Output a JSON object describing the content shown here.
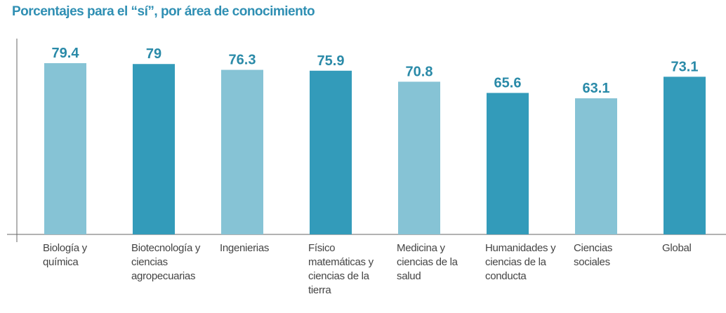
{
  "chart_data": {
    "type": "bar",
    "title": "Porcentajes para el “sí”, por área de conocimiento",
    "categories": [
      "Biología y química",
      "Biotecnología y ciencias agropecuarias",
      "Ingenierias",
      "Físico matemáticas y ciencias de la tierra",
      "Medicina y ciencias de la salud",
      "Humanidades y ciencias de la conducta",
      "Ciencias sociales",
      "Global"
    ],
    "values": [
      79.4,
      79,
      76.3,
      75.9,
      70.8,
      65.6,
      63.1,
      73.1
    ],
    "colors": [
      "#86c3d5",
      "#339bba",
      "#86c3d5",
      "#339bba",
      "#86c3d5",
      "#339bba",
      "#86c3d5",
      "#339bba"
    ],
    "ylim": [
      0,
      90
    ]
  }
}
